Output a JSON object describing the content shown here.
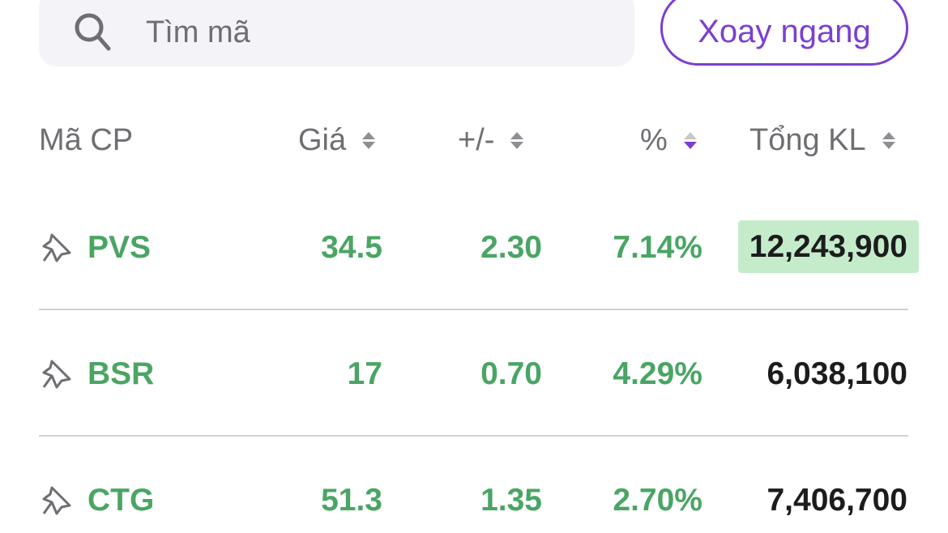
{
  "search": {
    "placeholder": "Tìm mã",
    "icon": "search-icon"
  },
  "rotate_button": "Xoay ngang",
  "columns": [
    "Mã CP",
    "Giá",
    "+/-",
    "%",
    "Tổng KL"
  ],
  "sorted_column": "%",
  "sorted_direction": "descending",
  "colors": {
    "up": "#4aa564",
    "accent": "#7b3fd0",
    "highlight": "#c5ecca"
  },
  "rows": [
    {
      "symbol": "PVS",
      "price": "34.5",
      "change": "2.30",
      "percent": "7.14%",
      "volume": "12,243,900",
      "highlighted": true
    },
    {
      "symbol": "BSR",
      "price": "17",
      "change": "0.70",
      "percent": "4.29%",
      "volume": "6,038,100"
    },
    {
      "symbol": "CTG",
      "price": "51.3",
      "change": "1.35",
      "percent": "2.70%",
      "volume": "7,406,700"
    }
  ]
}
